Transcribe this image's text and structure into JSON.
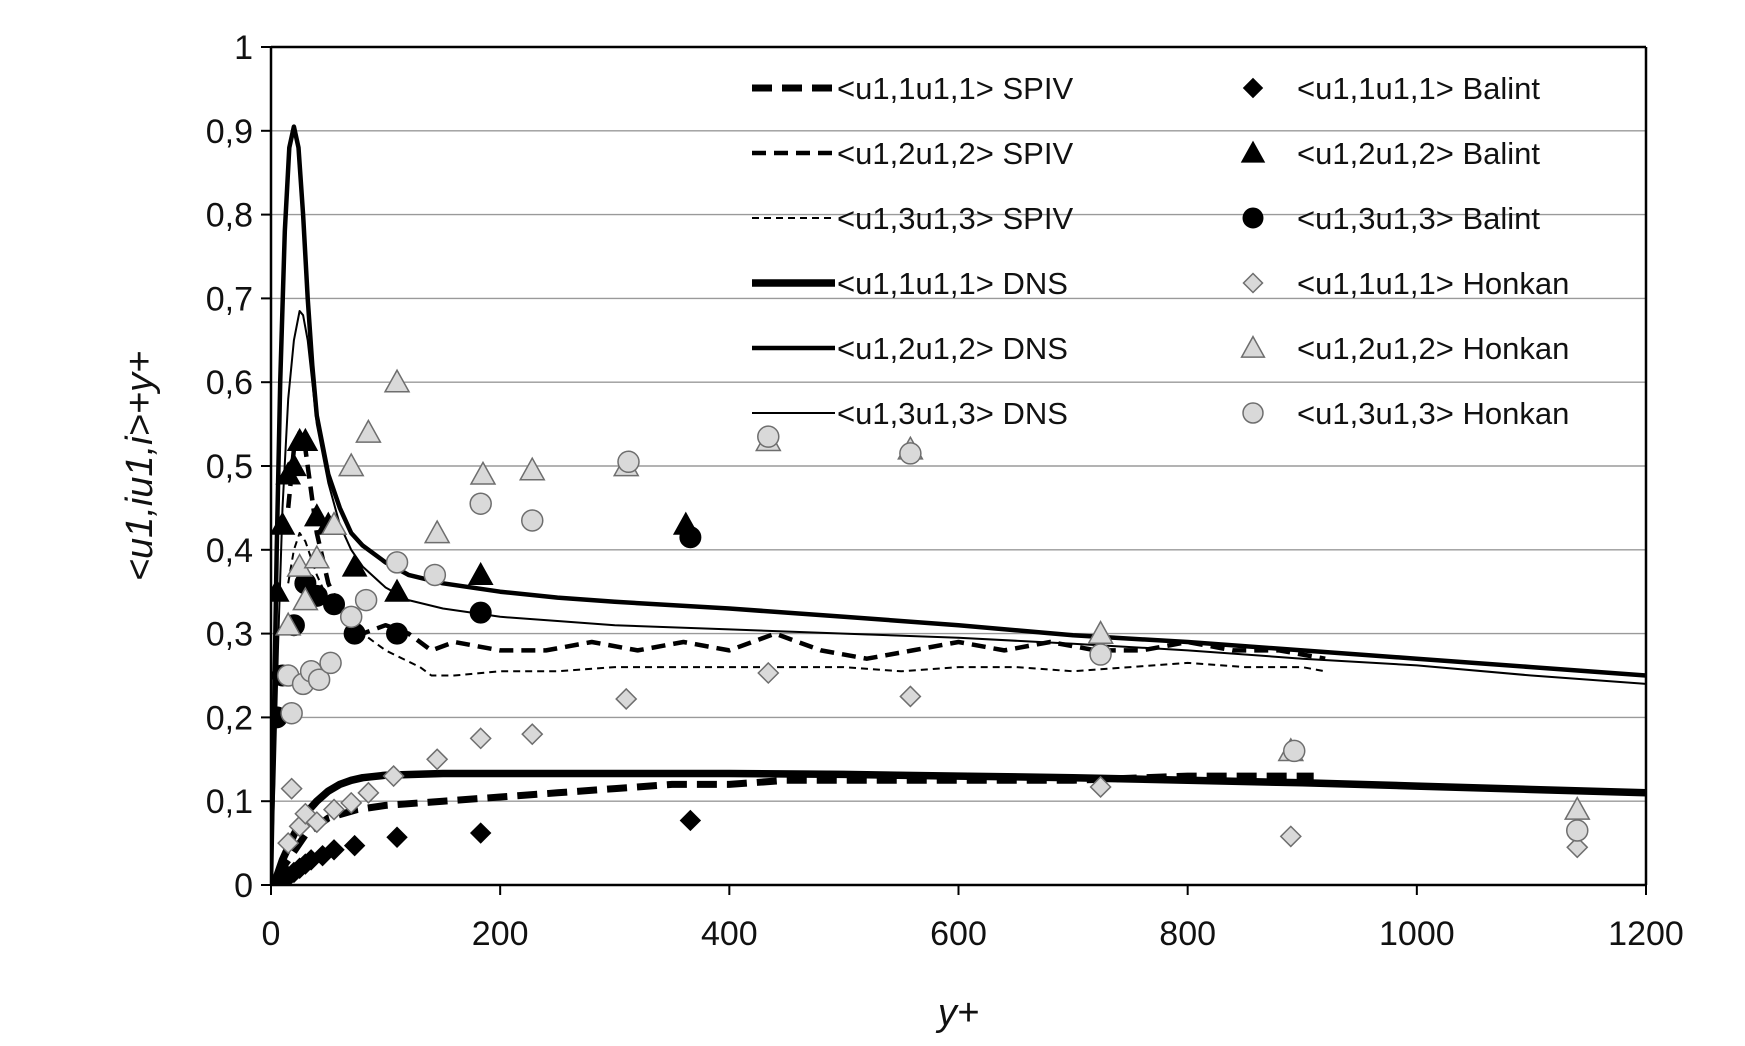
{
  "chart_data": {
    "type": "scatter",
    "title": "",
    "xlabel": "y+",
    "ylabel": "<u1,iu1,i>+y+",
    "xlim": [
      0,
      1200
    ],
    "ylim": [
      0,
      1
    ],
    "x_ticks": [
      0,
      200,
      400,
      600,
      800,
      1000,
      1200
    ],
    "y_ticks": [
      0,
      0.1,
      0.2,
      0.3,
      0.4,
      0.5,
      0.6,
      0.7,
      0.8,
      0.9,
      1
    ],
    "x_tick_labels": [
      "0",
      "200",
      "400",
      "600",
      "800",
      "1000",
      "1200"
    ],
    "y_tick_labels": [
      "0",
      "0,1",
      "0,2",
      "0,3",
      "0,4",
      "0,5",
      "0,6",
      "0,7",
      "0,8",
      "0,9",
      "1"
    ],
    "grid": "horizontal",
    "legend_placement": "top-right",
    "series": [
      {
        "name": "<u1,1u1,1> SPIV",
        "kind": "line",
        "style": "dash-thick",
        "x": [
          5,
          15,
          30,
          50,
          75,
          100,
          150,
          200,
          250,
          300,
          350,
          400,
          450,
          500,
          600,
          700,
          800,
          900,
          910
        ],
        "y": [
          0.01,
          0.03,
          0.06,
          0.08,
          0.09,
          0.095,
          0.1,
          0.105,
          0.11,
          0.115,
          0.12,
          0.12,
          0.125,
          0.125,
          0.125,
          0.125,
          0.13,
          0.13,
          0.13
        ]
      },
      {
        "name": "<u1,2u1,2> SPIV",
        "kind": "line",
        "style": "dash-medium",
        "x": [
          15,
          20,
          25,
          30,
          35,
          40,
          50,
          60,
          70,
          80,
          100,
          120,
          140,
          160,
          200,
          240,
          280,
          320,
          360,
          400,
          440,
          480,
          520,
          560,
          600,
          640,
          680,
          720,
          760,
          800,
          840,
          880,
          920
        ],
        "y": [
          0.45,
          0.52,
          0.54,
          0.52,
          0.47,
          0.42,
          0.36,
          0.33,
          0.31,
          0.3,
          0.31,
          0.3,
          0.28,
          0.29,
          0.28,
          0.28,
          0.29,
          0.28,
          0.29,
          0.28,
          0.3,
          0.28,
          0.27,
          0.28,
          0.29,
          0.28,
          0.29,
          0.28,
          0.28,
          0.29,
          0.28,
          0.28,
          0.27
        ]
      },
      {
        "name": "<u1,3u1,3> SPIV",
        "kind": "line",
        "style": "dash-thin",
        "x": [
          15,
          20,
          25,
          30,
          40,
          50,
          70,
          100,
          130,
          140,
          160,
          200,
          250,
          300,
          350,
          400,
          450,
          500,
          550,
          600,
          650,
          700,
          750,
          800,
          850,
          900,
          920
        ],
        "y": [
          0.36,
          0.4,
          0.42,
          0.41,
          0.37,
          0.34,
          0.31,
          0.28,
          0.26,
          0.25,
          0.25,
          0.255,
          0.255,
          0.26,
          0.26,
          0.26,
          0.26,
          0.26,
          0.255,
          0.26,
          0.26,
          0.255,
          0.26,
          0.265,
          0.26,
          0.26,
          0.255
        ]
      },
      {
        "name": "<u1,1u1,1> DNS",
        "kind": "line",
        "style": "solid-thick",
        "x": [
          0,
          5,
          10,
          20,
          30,
          40,
          50,
          60,
          70,
          80,
          100,
          150,
          200,
          300,
          400,
          500,
          600,
          700,
          800,
          900,
          1000,
          1100,
          1200
        ],
        "y": [
          0,
          0.01,
          0.03,
          0.06,
          0.085,
          0.1,
          0.112,
          0.12,
          0.125,
          0.128,
          0.131,
          0.133,
          0.133,
          0.133,
          0.133,
          0.132,
          0.13,
          0.128,
          0.125,
          0.122,
          0.118,
          0.114,
          0.11
        ]
      },
      {
        "name": "<u1,2u1,2> DNS",
        "kind": "line",
        "style": "solid-medium",
        "x": [
          0,
          2,
          5,
          8,
          12,
          16,
          20,
          24,
          28,
          32,
          36,
          40,
          50,
          60,
          70,
          80,
          100,
          120,
          150,
          200,
          250,
          300,
          400,
          500,
          600,
          700,
          800,
          900,
          1000,
          1100,
          1200
        ],
        "y": [
          0,
          0.15,
          0.4,
          0.6,
          0.78,
          0.88,
          0.905,
          0.88,
          0.8,
          0.7,
          0.62,
          0.56,
          0.49,
          0.45,
          0.42,
          0.405,
          0.385,
          0.37,
          0.36,
          0.35,
          0.343,
          0.338,
          0.33,
          0.32,
          0.31,
          0.298,
          0.29,
          0.28,
          0.27,
          0.26,
          0.25
        ]
      },
      {
        "name": "<u1,3u1,3> DNS",
        "kind": "line",
        "style": "solid-thin",
        "x": [
          0,
          3,
          6,
          10,
          15,
          20,
          25,
          28,
          32,
          36,
          40,
          50,
          60,
          70,
          80,
          100,
          120,
          150,
          200,
          250,
          300,
          400,
          500,
          600,
          700,
          800,
          900,
          1000,
          1100,
          1200
        ],
        "y": [
          0,
          0.12,
          0.28,
          0.45,
          0.58,
          0.65,
          0.685,
          0.68,
          0.65,
          0.6,
          0.55,
          0.48,
          0.43,
          0.4,
          0.38,
          0.355,
          0.34,
          0.33,
          0.32,
          0.315,
          0.31,
          0.305,
          0.3,
          0.295,
          0.288,
          0.28,
          0.27,
          0.262,
          0.25,
          0.24
        ]
      },
      {
        "name": "<u1,1u1,1> Balint",
        "kind": "marker",
        "marker": "diamond-black",
        "x": [
          5,
          10,
          15,
          20,
          25,
          30,
          35,
          45,
          55,
          73,
          110,
          183,
          366
        ],
        "y": [
          0.0,
          0.005,
          0.01,
          0.015,
          0.02,
          0.025,
          0.03,
          0.035,
          0.042,
          0.047,
          0.057,
          0.062,
          0.077
        ]
      },
      {
        "name": "<u1,2u1,2> Balint",
        "kind": "marker",
        "marker": "triangle-black",
        "x": [
          5,
          10,
          15,
          20,
          25,
          30,
          40,
          50,
          73,
          110,
          183,
          362
        ],
        "y": [
          0.35,
          0.43,
          0.49,
          0.5,
          0.53,
          0.53,
          0.44,
          0.43,
          0.38,
          0.35,
          0.37,
          0.43
        ]
      },
      {
        "name": "<u1,3u1,3> Balint",
        "kind": "marker",
        "marker": "circle-black",
        "x": [
          5,
          10,
          20,
          30,
          40,
          55,
          73,
          110,
          183,
          366
        ],
        "y": [
          0.2,
          0.25,
          0.31,
          0.36,
          0.345,
          0.335,
          0.3,
          0.3,
          0.325,
          0.415
        ]
      },
      {
        "name": "<u1,1u1,1> Honkan",
        "kind": "marker",
        "marker": "diamond-gray",
        "x": [
          15,
          18,
          25,
          30,
          40,
          55,
          70,
          85,
          107,
          145,
          183,
          228,
          310,
          434,
          558,
          724,
          890,
          1140
        ],
        "y": [
          0.05,
          0.115,
          0.07,
          0.085,
          0.075,
          0.09,
          0.098,
          0.11,
          0.13,
          0.15,
          0.175,
          0.18,
          0.222,
          0.253,
          0.225,
          0.117,
          0.058,
          0.045
        ]
      },
      {
        "name": "<u1,2u1,2> Honkan",
        "kind": "marker",
        "marker": "triangle-gray",
        "x": [
          15,
          25,
          30,
          40,
          55,
          70,
          85,
          110,
          145,
          185,
          228,
          310,
          434,
          558,
          724,
          890,
          1140
        ],
        "y": [
          0.31,
          0.38,
          0.34,
          0.39,
          0.43,
          0.5,
          0.54,
          0.6,
          0.42,
          0.49,
          0.495,
          0.5,
          0.53,
          0.52,
          0.3,
          0.16,
          0.09
        ]
      },
      {
        "name": "<u1,3u1,3> Honkan",
        "kind": "marker",
        "marker": "circle-gray",
        "x": [
          15,
          18,
          28,
          35,
          42,
          52,
          70,
          83,
          110,
          143,
          183,
          228,
          312,
          434,
          558,
          724,
          893,
          1140
        ],
        "y": [
          0.25,
          0.205,
          0.24,
          0.255,
          0.245,
          0.265,
          0.32,
          0.34,
          0.385,
          0.37,
          0.455,
          0.435,
          0.505,
          0.535,
          0.515,
          0.275,
          0.16,
          0.065
        ]
      }
    ]
  }
}
